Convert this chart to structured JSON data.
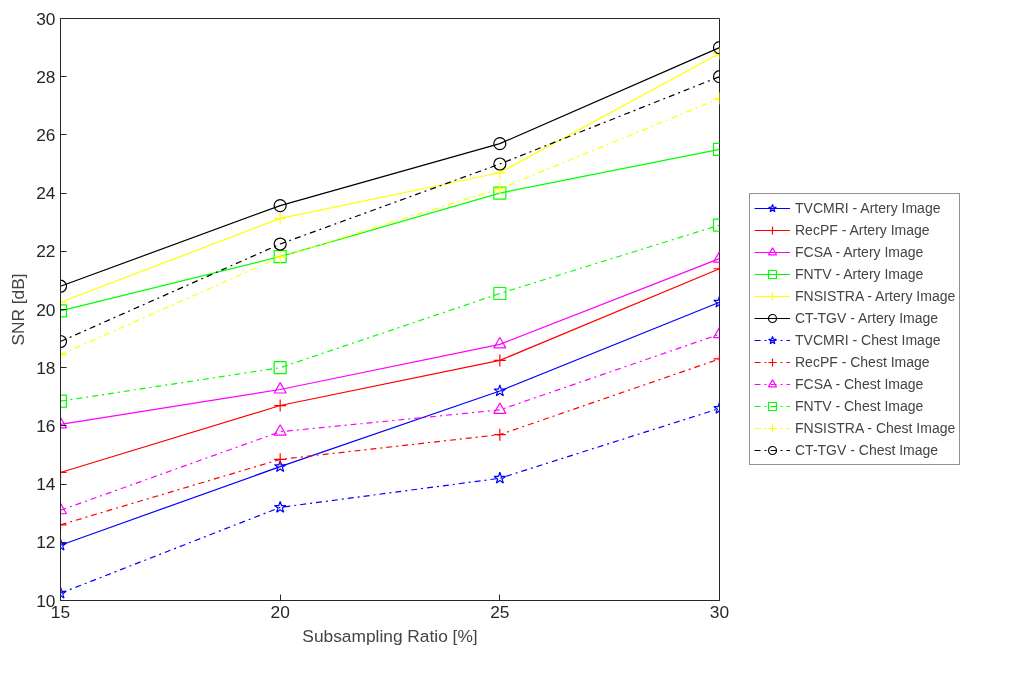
{
  "chart_data": {
    "type": "line",
    "xlabel": "Subsampling Ratio [%]",
    "ylabel": "SNR [dB]",
    "x": [
      15,
      20,
      25,
      30
    ],
    "xlim": [
      15,
      30
    ],
    "xticks": [
      15,
      20,
      25,
      30
    ],
    "ylim": [
      10,
      30
    ],
    "yticks": [
      10,
      12,
      14,
      16,
      18,
      20,
      22,
      24,
      26,
      28,
      30
    ],
    "grid": false,
    "legend": "right",
    "series": [
      {
        "name": "TVCMRI - Artery Image",
        "color": "#0000ff",
        "marker": "star",
        "line_style": "solid",
        "values": [
          11.9,
          14.6,
          17.2,
          20.25
        ]
      },
      {
        "name": "RecPF - Artery Image",
        "color": "#ff0000",
        "marker": "cross",
        "line_style": "solid",
        "values": [
          14.4,
          16.7,
          18.25,
          21.4
        ]
      },
      {
        "name": "FCSA - Artery Image",
        "color": "#ff00ff",
        "marker": "triangle",
        "line_style": "solid",
        "values": [
          16.05,
          17.25,
          18.8,
          21.75
        ]
      },
      {
        "name": "FNTV - Artery Image",
        "color": "#00ff00",
        "marker": "square",
        "line_style": "solid",
        "values": [
          19.95,
          21.82,
          24.0,
          25.5
        ]
      },
      {
        "name": "FNSISTRA - Artery Image",
        "color": "#ffff00",
        "marker": "cross",
        "line_style": "solid",
        "values": [
          20.25,
          23.13,
          24.7,
          28.8
        ]
      },
      {
        "name": "CT-TGV - Artery Image",
        "color": "#000000",
        "marker": "circle",
        "line_style": "solid",
        "values": [
          20.8,
          23.57,
          25.7,
          29.0
        ]
      },
      {
        "name": "TVCMRI - Chest Image",
        "color": "#0000ff",
        "marker": "star",
        "line_style": "dashdot",
        "values": [
          10.25,
          13.2,
          14.2,
          16.6
        ]
      },
      {
        "name": "RecPF - Chest Image",
        "color": "#ff0000",
        "marker": "cross",
        "line_style": "dashdot",
        "values": [
          12.6,
          14.85,
          15.7,
          18.3
        ]
      },
      {
        "name": "FCSA - Chest Image",
        "color": "#ff00ff",
        "marker": "triangle",
        "line_style": "dashdot",
        "values": [
          13.1,
          15.8,
          16.55,
          19.15
        ]
      },
      {
        "name": "FNTV - Chest Image",
        "color": "#00ff00",
        "marker": "square",
        "line_style": "dashdot",
        "values": [
          16.85,
          18.0,
          20.55,
          22.9
        ]
      },
      {
        "name": "FNSISTRA - Chest Image",
        "color": "#ffff00",
        "marker": "cross",
        "line_style": "dashdot",
        "values": [
          18.45,
          21.8,
          24.15,
          27.25
        ]
      },
      {
        "name": "CT-TGV - Chest Image",
        "color": "#000000",
        "marker": "circle",
        "line_style": "dashdot",
        "values": [
          18.9,
          22.25,
          25.0,
          28.0
        ]
      }
    ]
  }
}
